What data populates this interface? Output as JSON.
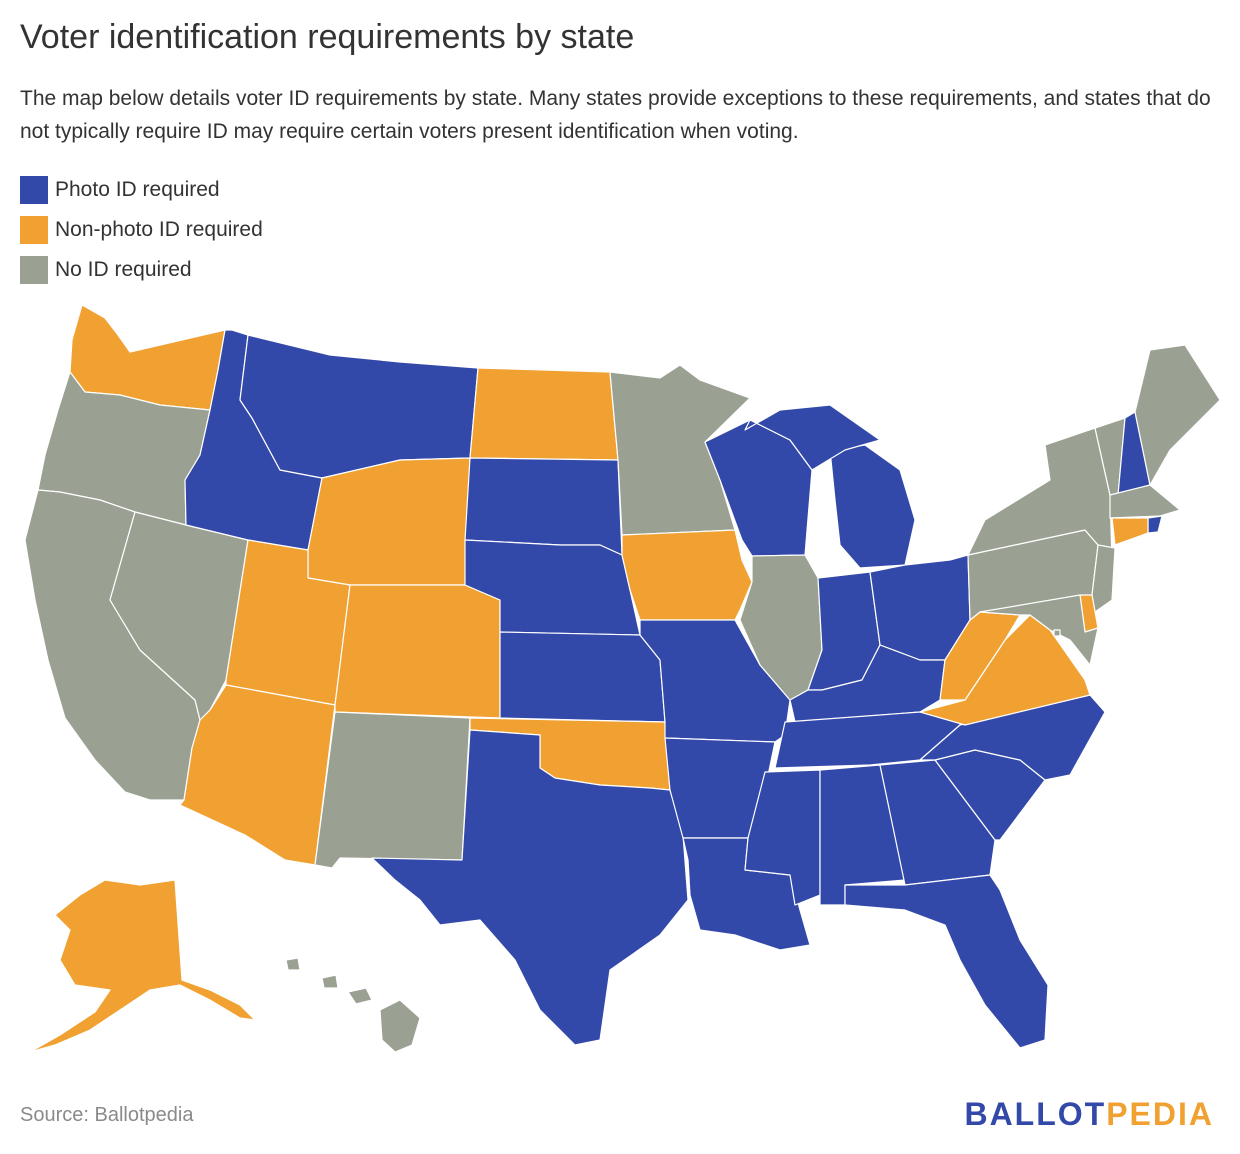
{
  "header": {
    "title": "Voter identification requirements by state",
    "subtitle": "The map below details voter ID requirements by state. Many states provide exceptions to these requirements, and states that do not typically require ID may require certain voters present identification when voting."
  },
  "colors": {
    "photo": "#3349a9",
    "nonphoto": "#f0a132",
    "none": "#9aa092"
  },
  "legend": {
    "items": [
      {
        "key": "photo",
        "label": "Photo ID required"
      },
      {
        "key": "nonphoto",
        "label": "Non-photo ID required"
      },
      {
        "key": "none",
        "label": "No ID required"
      }
    ]
  },
  "map_data": {
    "type": "choropleth",
    "region": "United States",
    "states": {
      "WA": "nonphoto",
      "OR": "none",
      "CA": "none",
      "NV": "none",
      "ID": "photo",
      "MT": "photo",
      "WY": "nonphoto",
      "UT": "nonphoto",
      "AZ": "nonphoto",
      "CO": "nonphoto",
      "NM": "none",
      "ND": "nonphoto",
      "SD": "photo",
      "NE": "photo",
      "KS": "photo",
      "OK": "nonphoto",
      "TX": "photo",
      "MN": "none",
      "IA": "nonphoto",
      "MO": "photo",
      "AR": "photo",
      "LA": "photo",
      "WI": "photo",
      "IL": "none",
      "MI": "photo",
      "IN": "photo",
      "OH": "photo",
      "KY": "photo",
      "TN": "photo",
      "MS": "photo",
      "AL": "photo",
      "GA": "photo",
      "FL": "photo",
      "SC": "photo",
      "NC": "photo",
      "VA": "nonphoto",
      "WV": "nonphoto",
      "PA": "none",
      "NY": "none",
      "VT": "none",
      "NH": "photo",
      "ME": "none",
      "MA": "none",
      "RI": "photo",
      "CT": "nonphoto",
      "NJ": "none",
      "DE": "nonphoto",
      "MD": "none",
      "DC": "none",
      "AK": "nonphoto",
      "HI": "none"
    }
  },
  "footer": {
    "source": "Source: Ballotpedia",
    "brand_part1": "BALLOT",
    "brand_part2": "PEDIA"
  }
}
